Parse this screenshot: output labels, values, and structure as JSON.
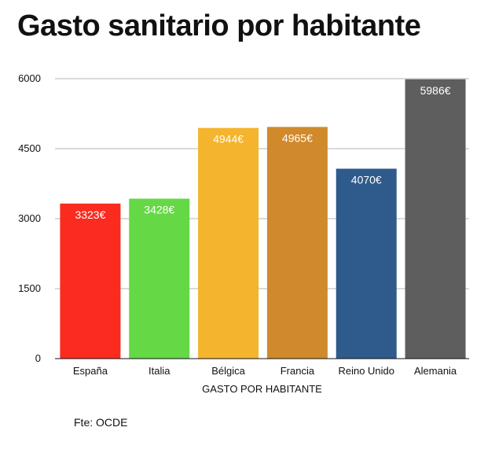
{
  "chart_data": {
    "type": "bar",
    "title": "Gasto sanitario por habitante",
    "xlabel": "GASTO POR HABITANTE",
    "ylabel": "",
    "ylim": [
      0,
      6000
    ],
    "yticks": [
      0,
      1500,
      3000,
      4500,
      6000
    ],
    "grid": true,
    "categories": [
      "España",
      "Italia",
      "Bélgica",
      "Francia",
      "Reino Unido",
      "Alemania"
    ],
    "values": [
      3323,
      3428,
      4944,
      4965,
      4070,
      5986
    ],
    "value_labels": [
      "3323€",
      "3428€",
      "4944€",
      "4965€",
      "4070€",
      "5986€"
    ],
    "colors": [
      "#fb2b1f",
      "#64d845",
      "#f5b42d",
      "#d08a2b",
      "#2f5a8c",
      "#5e5e5e"
    ],
    "source": "Fte: OCDE"
  }
}
